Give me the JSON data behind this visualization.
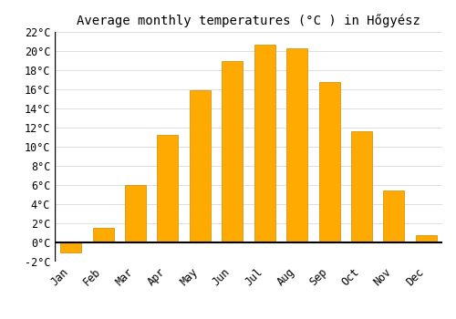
{
  "title": "Average monthly temperatures (°C ) in Hőgyész",
  "months": [
    "Jan",
    "Feb",
    "Mar",
    "Apr",
    "May",
    "Jun",
    "Jul",
    "Aug",
    "Sep",
    "Oct",
    "Nov",
    "Dec"
  ],
  "values": [
    -1.0,
    1.5,
    6.0,
    11.2,
    15.9,
    19.0,
    20.7,
    20.3,
    16.8,
    11.6,
    5.4,
    0.8
  ],
  "bar_color": "#FFAA00",
  "bar_edge_color": "#CC8800",
  "ylim": [
    -2,
    22
  ],
  "yticks": [
    -2,
    0,
    2,
    4,
    6,
    8,
    10,
    12,
    14,
    16,
    18,
    20,
    22
  ],
  "background_color": "#ffffff",
  "grid_color": "#dddddd",
  "title_fontsize": 10,
  "tick_fontsize": 8.5,
  "font_family": "monospace",
  "bar_width": 0.65
}
